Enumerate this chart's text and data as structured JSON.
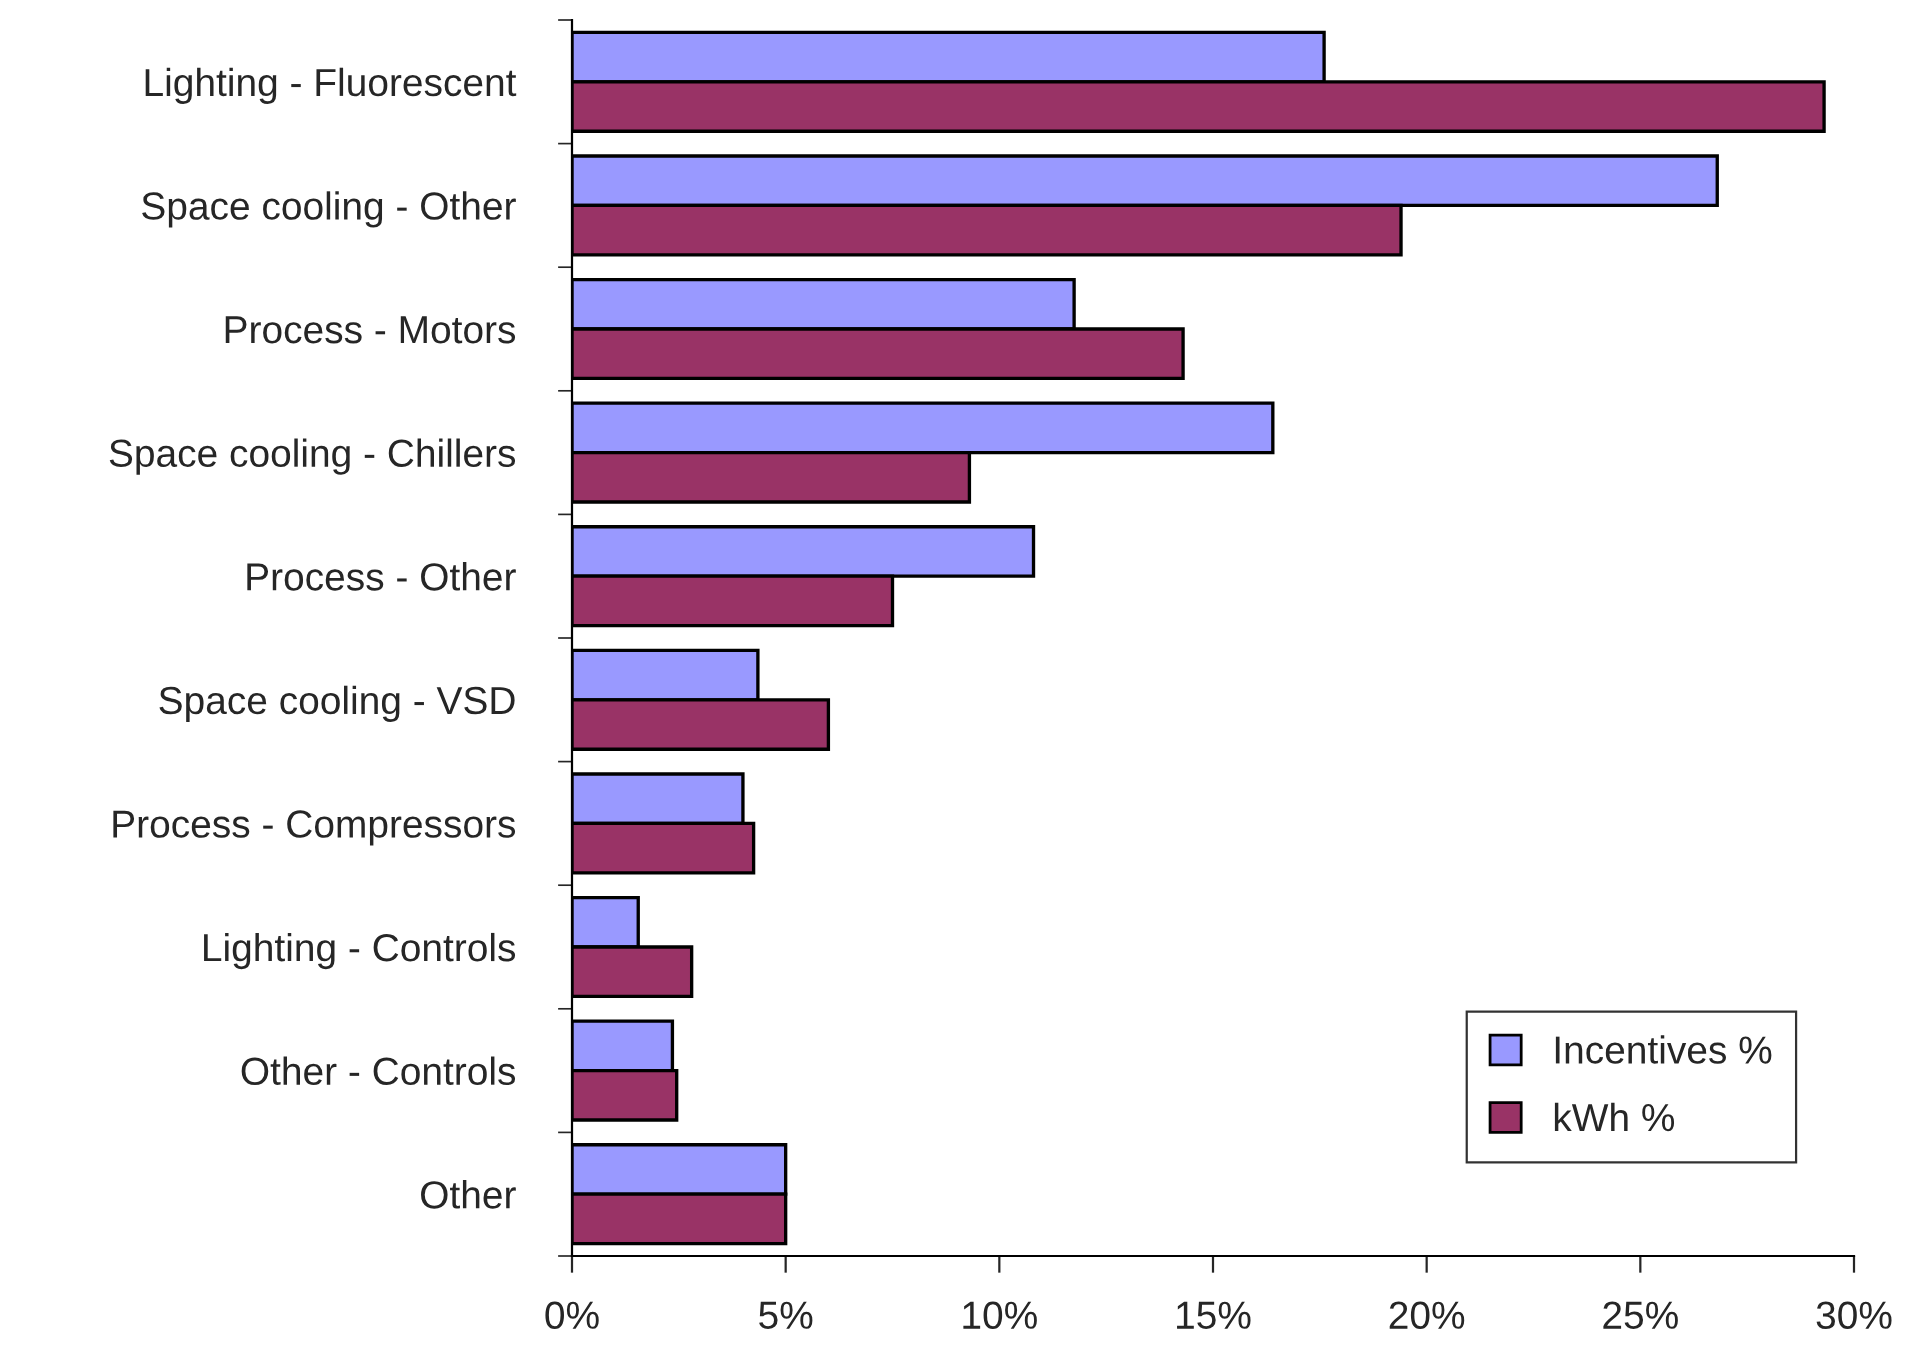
{
  "chart_data": {
    "type": "bar",
    "orientation": "horizontal",
    "categories": [
      "Lighting - Fluorescent",
      "Space cooling - Other",
      "Process - Motors",
      "Space cooling - Chillers",
      "Process - Other",
      "Space cooling - VSD",
      "Process - Compressors",
      "Lighting - Controls",
      "Other - Controls",
      "Other"
    ],
    "series": [
      {
        "name": "Incentives %",
        "color": "#9999ff",
        "values": [
          17.6,
          26.8,
          11.75,
          16.4,
          10.8,
          4.35,
          4.0,
          1.55,
          2.35,
          5.0
        ]
      },
      {
        "name": "kWh %",
        "color": "#993366",
        "values": [
          29.3,
          19.4,
          14.3,
          9.3,
          7.5,
          6.0,
          4.25,
          2.8,
          2.45,
          5.0
        ]
      }
    ],
    "xlim": [
      0,
      30
    ],
    "xticks": [
      {
        "value": 0,
        "label": "0%"
      },
      {
        "value": 5,
        "label": "5%"
      },
      {
        "value": 10,
        "label": "10%"
      },
      {
        "value": 15,
        "label": "15%"
      },
      {
        "value": 20,
        "label": "20%"
      },
      {
        "value": 25,
        "label": "25%"
      },
      {
        "value": 30,
        "label": "30%"
      }
    ],
    "grid": false,
    "legend": "bottom right"
  }
}
